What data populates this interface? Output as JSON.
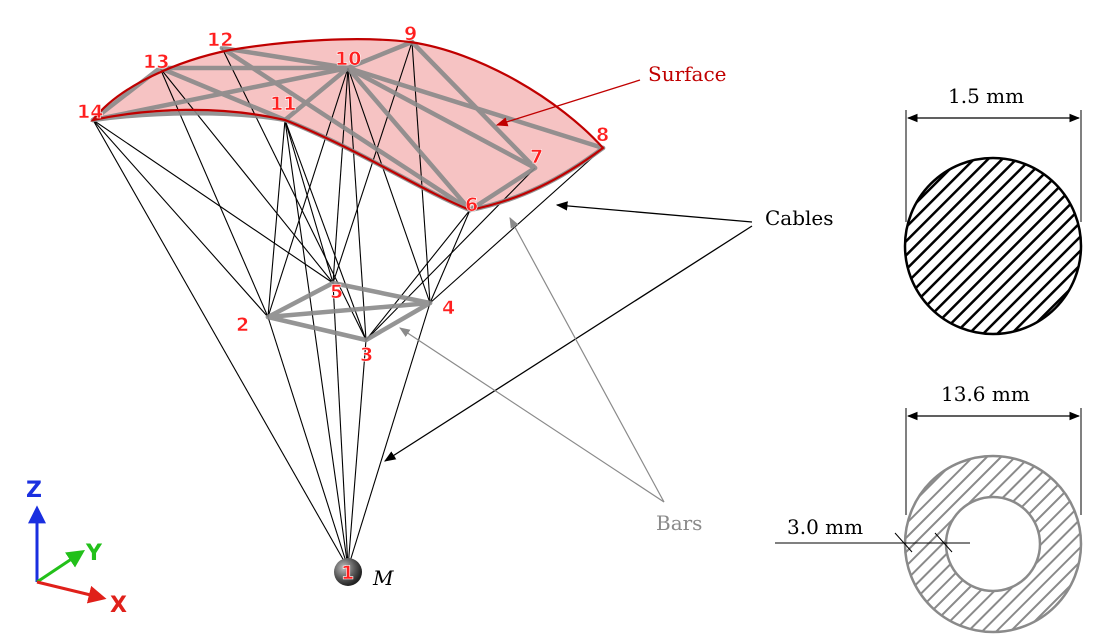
{
  "nodes": [
    "1",
    "2",
    "3",
    "4",
    "5",
    "6",
    "7",
    "8",
    "9",
    "10",
    "11",
    "12",
    "13",
    "14"
  ],
  "mass_label": "M",
  "labels": {
    "surface": "Surface",
    "cables": "Cables",
    "bars": "Bars"
  },
  "dimensions": {
    "cable_diameter": "1.5 mm",
    "bar_outer_diameter": "13.6 mm",
    "bar_wall_thickness": "3.0 mm"
  },
  "axes": {
    "x": "X",
    "y": "Y",
    "z": "Z"
  },
  "colors": {
    "surface_fill": "#f4b9b9",
    "surface_edge": "#c00000",
    "node_label": "#ff1f1f",
    "cable": "#000000",
    "bar": "#8a8a8a",
    "axis_x": "#e0201a",
    "axis_y": "#22c01a",
    "axis_z": "#1a2fe0"
  }
}
